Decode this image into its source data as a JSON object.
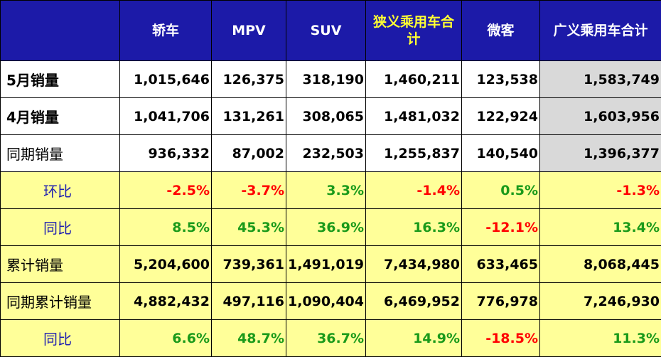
{
  "colors": {
    "header_bg": "#1c1aa8",
    "header_text": "#ffffff",
    "header_highlight_text": "#ffff33",
    "yellow_row_bg": "#ffff99",
    "gray_cell_bg": "#d9d9d9",
    "negative": "#ff0000",
    "positive": "#1a9a1a",
    "label_blue": "#2020b0"
  },
  "header": [
    "",
    "轿车",
    "MPV",
    "SUV",
    "狭义乘用车合计",
    "微客",
    "广义乘用车合计"
  ],
  "rows": [
    {
      "label": "5月销量",
      "values": [
        "1,015,646",
        "126,375",
        "318,190",
        "1,460,211",
        "123,538",
        "1,583,749"
      ]
    },
    {
      "label": "4月销量",
      "values": [
        "1,041,706",
        "131,261",
        "308,065",
        "1,481,032",
        "122,924",
        "1,603,956"
      ]
    },
    {
      "label": "同期销量",
      "values": [
        "936,332",
        "87,002",
        "232,503",
        "1,255,837",
        "140,540",
        "1,396,377"
      ]
    },
    {
      "label": "环比",
      "values": [
        "-2.5%",
        "-3.7%",
        "3.3%",
        "-1.4%",
        "0.5%",
        "-1.3%"
      ]
    },
    {
      "label": "同比",
      "values": [
        "8.5%",
        "45.3%",
        "36.9%",
        "16.3%",
        "-12.1%",
        "13.4%"
      ]
    },
    {
      "label": "累计销量",
      "values": [
        "5,204,600",
        "739,361",
        "1,491,019",
        "7,434,980",
        "633,465",
        "8,068,445"
      ]
    },
    {
      "label": "同期累计销量",
      "values": [
        "4,882,432",
        "497,116",
        "1,090,404",
        "6,469,952",
        "776,978",
        "7,246,930"
      ]
    },
    {
      "label": "同比",
      "values": [
        "6.6%",
        "48.7%",
        "36.7%",
        "14.9%",
        "-18.5%",
        "11.3%"
      ]
    }
  ]
}
